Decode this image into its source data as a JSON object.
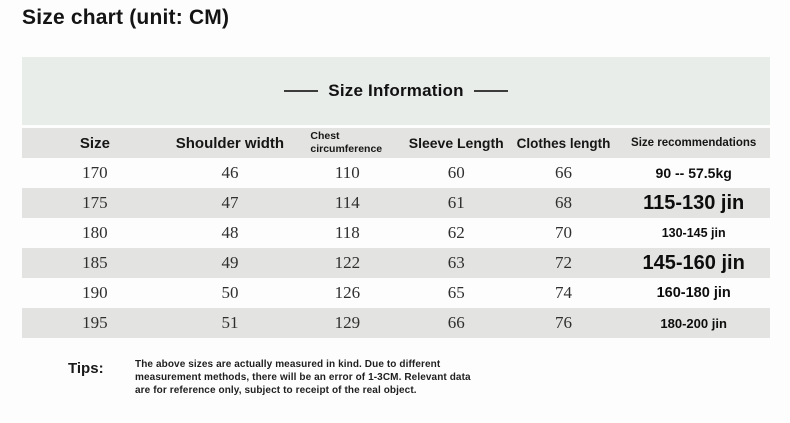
{
  "page": {
    "title": "Size chart (unit: CM)"
  },
  "table": {
    "section_title": "Size Information",
    "columns": [
      {
        "label": "Size"
      },
      {
        "label": "Shoulder width"
      },
      {
        "label": "Chest circumference"
      },
      {
        "label": "Sleeve Length"
      },
      {
        "label": "Clothes length"
      },
      {
        "label": "Size recommendations"
      }
    ],
    "rows": [
      {
        "size": "170",
        "shoulder": "46",
        "chest": "110",
        "sleeve": "60",
        "clothes": "66",
        "rec": "90 -- 57.5kg"
      },
      {
        "size": "175",
        "shoulder": "47",
        "chest": "114",
        "sleeve": "61",
        "clothes": "68",
        "rec": "115-130 jin"
      },
      {
        "size": "180",
        "shoulder": "48",
        "chest": "118",
        "sleeve": "62",
        "clothes": "70",
        "rec": "130-145 jin"
      },
      {
        "size": "185",
        "shoulder": "49",
        "chest": "122",
        "sleeve": "63",
        "clothes": "72",
        "rec": "145-160 jin"
      },
      {
        "size": "190",
        "shoulder": "50",
        "chest": "126",
        "sleeve": "65",
        "clothes": "74",
        "rec": "160-180 jin"
      },
      {
        "size": "195",
        "shoulder": "51",
        "chest": "129",
        "sleeve": "66",
        "clothes": "76",
        "rec": "180-200 jin"
      }
    ]
  },
  "tips": {
    "label": "Tips:",
    "text": "The above sizes are actually measured in kind. Due to different measurement methods, there will be an error of 1-3CM. Relevant data are for reference only, subject to receipt of the real object."
  },
  "colors": {
    "section_band_bg": "#e9ede9",
    "stripe_bg": "#e3e4e1",
    "text_dark": "#141414",
    "line_color": "#3c3c3c"
  }
}
